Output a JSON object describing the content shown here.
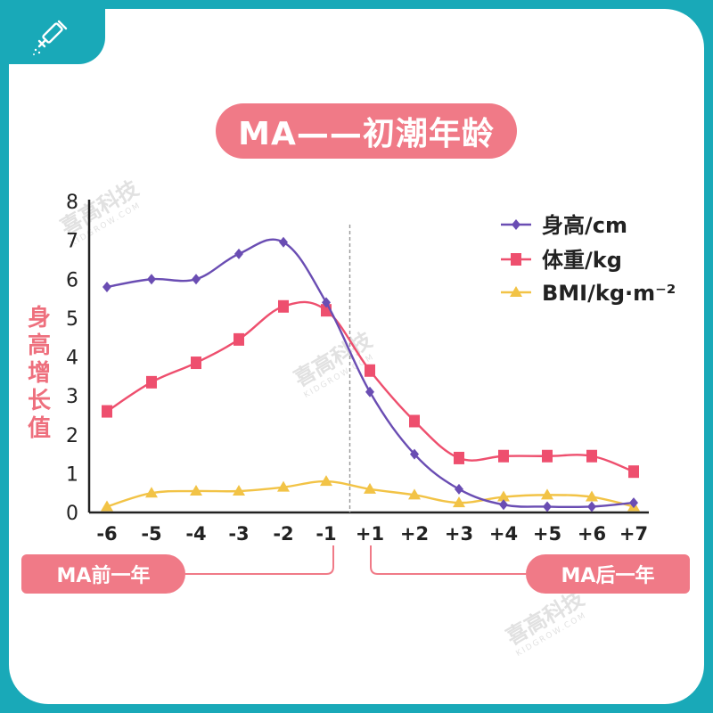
{
  "title": "MA——初潮年龄",
  "ylabel_chars": [
    "身",
    "高",
    "增",
    "长",
    "值"
  ],
  "pill_left": "MA前一年",
  "pill_right": "MA后一年",
  "watermark": {
    "main": "喜高科技",
    "sub": "KIDGROW.COM"
  },
  "colors": {
    "frame": "#19a9b8",
    "accent": "#f07a87",
    "height": "#6a4db3",
    "weight": "#ee4f6e",
    "bmi": "#f2c346",
    "axis": "#222222"
  },
  "chart_data": {
    "type": "line",
    "title": "MA——初潮年龄",
    "xlabel": "",
    "ylabel": "身高增长值",
    "categories": [
      "-6",
      "-5",
      "-4",
      "-3",
      "-2",
      "-1",
      "+1",
      "+2",
      "+3",
      "+4",
      "+5",
      "+6",
      "+7"
    ],
    "yticks": [
      "0",
      "1",
      "2",
      "3",
      "4",
      "5",
      "6",
      "7",
      "8"
    ],
    "ylim": [
      0,
      8
    ],
    "legend_position": "top-right",
    "divider_between": [
      "-1",
      "+1"
    ],
    "series": [
      {
        "name": "身高/cm",
        "marker": "diamond",
        "color": "#6a4db3",
        "values": [
          5.8,
          6.0,
          6.0,
          6.65,
          6.95,
          5.4,
          3.1,
          1.5,
          0.6,
          0.2,
          0.15,
          0.15,
          0.25
        ]
      },
      {
        "name": "体重/kg",
        "marker": "square",
        "color": "#ee4f6e",
        "values": [
          2.6,
          3.35,
          3.85,
          4.45,
          5.3,
          5.2,
          3.65,
          2.35,
          1.4,
          1.45,
          1.45,
          1.45,
          1.05
        ]
      },
      {
        "name": "BMI/kg·m⁻²",
        "marker": "triangle",
        "color": "#f2c346",
        "values": [
          0.15,
          0.5,
          0.55,
          0.55,
          0.65,
          0.8,
          0.6,
          0.45,
          0.25,
          0.4,
          0.45,
          0.4,
          0.15
        ]
      }
    ]
  }
}
